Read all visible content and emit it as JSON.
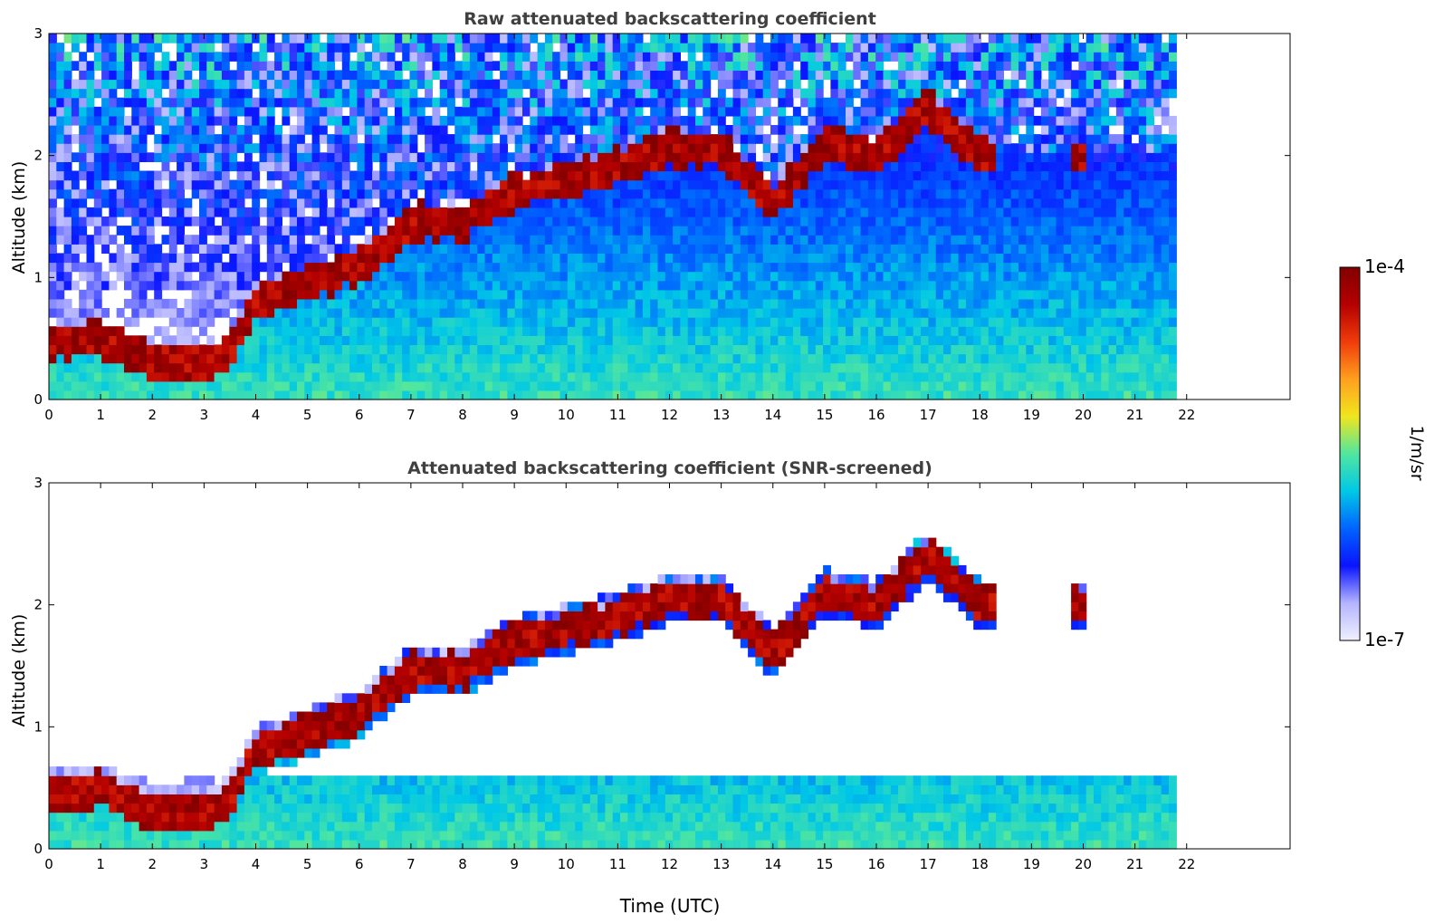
{
  "figure": {
    "colorbar_label": "1/m/sr",
    "colorbar_min_label": "1e-7",
    "colorbar_max_label": "1e-4",
    "colormap": [
      "#f0f0ff",
      "#b4b4ff",
      "#0a14ff",
      "#0064ff",
      "#00c8e6",
      "#50e6a0",
      "#f0e61e",
      "#ffa01e",
      "#f03c0a",
      "#b40000",
      "#820000"
    ],
    "colormap_note": "log scale from 1e-7 to 1e-4"
  },
  "chart_data": [
    {
      "type": "heatmap",
      "title": "Raw attenuated backscattering coefficient",
      "xlabel": "",
      "ylabel": "Altitude (km)",
      "x_ticks": [
        0,
        1,
        2,
        3,
        4,
        5,
        6,
        7,
        8,
        9,
        10,
        11,
        12,
        13,
        14,
        15,
        16,
        17,
        18,
        19,
        20,
        21,
        22
      ],
      "y_ticks": [
        0,
        1,
        2,
        3
      ],
      "xlim": [
        0,
        24
      ],
      "ylim": [
        0,
        3
      ],
      "data_time_range": [
        0,
        21.8
      ],
      "cloud_base_altitude_km": [
        [
          0,
          0.45
        ],
        [
          1,
          0.5
        ],
        [
          2,
          0.3
        ],
        [
          3,
          0.3
        ],
        [
          3.5,
          0.4
        ],
        [
          4,
          0.8
        ],
        [
          5,
          0.95
        ],
        [
          6,
          1.1
        ],
        [
          7,
          1.45
        ],
        [
          8,
          1.45
        ],
        [
          9,
          1.7
        ],
        [
          10,
          1.8
        ],
        [
          11,
          1.9
        ],
        [
          12,
          2.05
        ],
        [
          13,
          2.05
        ],
        [
          14,
          1.6
        ],
        [
          15,
          2.1
        ],
        [
          16,
          2.0
        ],
        [
          17,
          2.4
        ],
        [
          18,
          2.0
        ]
      ]
    },
    {
      "type": "heatmap",
      "title": "Attenuated backscattering coefficient (SNR-screened)",
      "xlabel": "Time (UTC)",
      "ylabel": "Altitude (km)",
      "x_ticks": [
        0,
        1,
        2,
        3,
        4,
        5,
        6,
        7,
        8,
        9,
        10,
        11,
        12,
        13,
        14,
        15,
        16,
        17,
        18,
        19,
        20,
        21,
        22
      ],
      "y_ticks": [
        0,
        1,
        2,
        3
      ],
      "xlim": [
        0,
        24
      ],
      "ylim": [
        0,
        3
      ],
      "data_time_range": [
        0,
        21.8
      ],
      "cloud_base_altitude_km": [
        [
          0,
          0.45
        ],
        [
          1,
          0.5
        ],
        [
          2,
          0.3
        ],
        [
          3,
          0.3
        ],
        [
          3.5,
          0.4
        ],
        [
          4,
          0.8
        ],
        [
          5,
          0.95
        ],
        [
          6,
          1.1
        ],
        [
          7,
          1.45
        ],
        [
          8,
          1.45
        ],
        [
          9,
          1.7
        ],
        [
          10,
          1.8
        ],
        [
          11,
          1.9
        ],
        [
          12,
          2.05
        ],
        [
          13,
          2.05
        ],
        [
          14,
          1.6
        ],
        [
          15,
          2.1
        ],
        [
          16,
          2.0
        ],
        [
          17,
          2.4
        ],
        [
          18,
          2.0
        ]
      ]
    }
  ]
}
